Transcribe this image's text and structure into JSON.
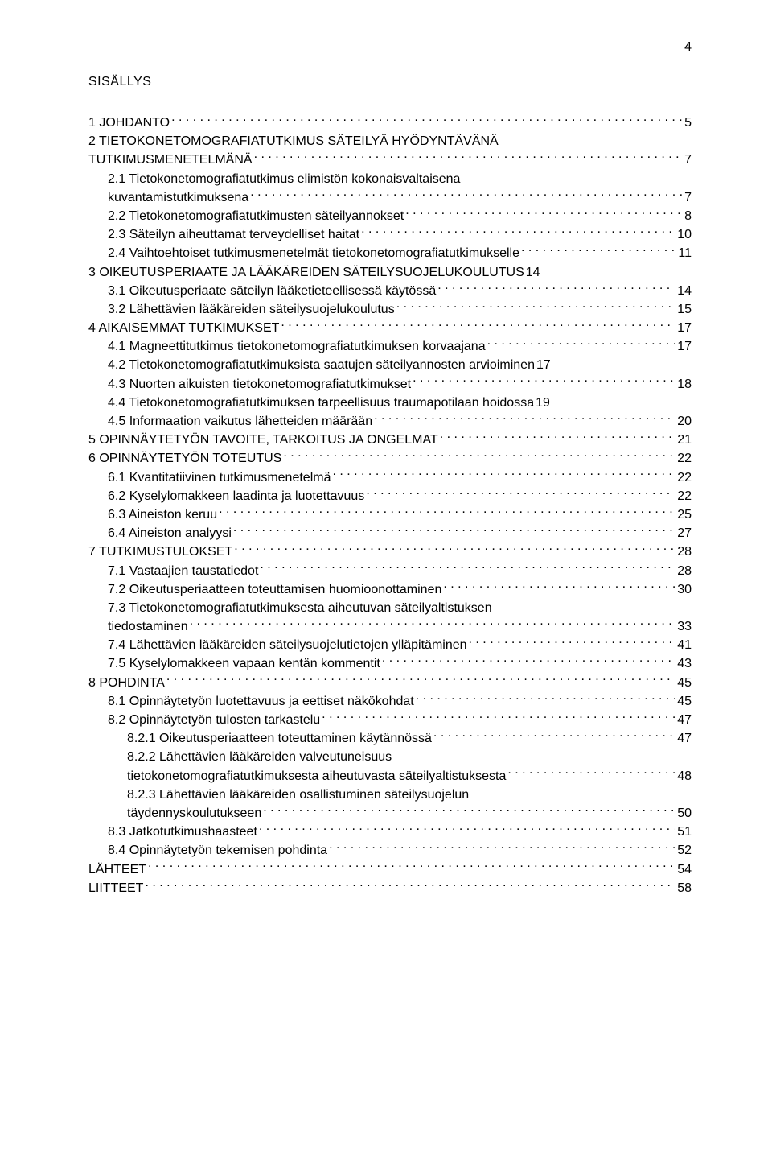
{
  "page_number": "4",
  "heading": "SISÄLLYS",
  "text_color": "#000000",
  "background_color": "#ffffff",
  "font_family": "Arial",
  "body_font_size_pt": 12,
  "toc": [
    {
      "level": 0,
      "label": "1 JOHDANTO",
      "page": "5"
    },
    {
      "level": 0,
      "multi": true,
      "line1": "2 TIETOKONETOMOGRAFIATUTKIMUS SÄTEILYÄ HYÖDYNTÄVÄNÄ",
      "line2": "TUTKIMUSMENETELMÄNÄ",
      "page": "7"
    },
    {
      "level": 1,
      "multi": true,
      "line1": "2.1 Tietokonetomografiatutkimus elimistön kokonaisvaltaisena",
      "line2": "kuvantamistutkimuksena",
      "page": "7"
    },
    {
      "level": 1,
      "label": "2.2 Tietokonetomografiatutkimusten säteilyannokset",
      "page": "8"
    },
    {
      "level": 1,
      "label": "2.3 Säteilyn aiheuttamat terveydelliset haitat",
      "page": "10"
    },
    {
      "level": 1,
      "label": "2.4 Vaihtoehtoiset tutkimusmenetelmät tietokonetomografiatutkimukselle",
      "page": "11"
    },
    {
      "level": 0,
      "label": "3 OIKEUTUSPERIAATE JA LÄÄKÄREIDEN SÄTEILYSUOJELUKOULUTUS",
      "page": "14",
      "tight": true
    },
    {
      "level": 1,
      "label": "3.1 Oikeutusperiaate säteilyn lääketieteellisessä käytössä",
      "page": "14"
    },
    {
      "level": 1,
      "label": "3.2 Lähettävien lääkäreiden säteilysuojelukoulutus",
      "page": "15"
    },
    {
      "level": 0,
      "label": "4 AIKAISEMMAT TUTKIMUKSET",
      "page": "17"
    },
    {
      "level": 1,
      "label": "4.1 Magneettitutkimus tietokonetomografiatutkimuksen korvaajana",
      "page": "17"
    },
    {
      "level": 1,
      "label": "4.2 Tietokonetomografiatutkimuksista saatujen säteilyannosten arvioiminen",
      "page": "17",
      "tight": true
    },
    {
      "level": 1,
      "label": "4.3 Nuorten aikuisten tietokonetomografiatutkimukset",
      "page": "18"
    },
    {
      "level": 1,
      "label": "4.4 Tietokonetomografiatutkimuksen tarpeellisuus traumapotilaan hoidossa",
      "page": "19",
      "tight": true
    },
    {
      "level": 1,
      "label": "4.5 Informaation vaikutus lähetteiden määrään",
      "page": "20"
    },
    {
      "level": 0,
      "label": "5 OPINNÄYTETYÖN TAVOITE, TARKOITUS JA ONGELMAT",
      "page": "21"
    },
    {
      "level": 0,
      "label": "6 OPINNÄYTETYÖN TOTEUTUS",
      "page": "22"
    },
    {
      "level": 1,
      "label": "6.1 Kvantitatiivinen tutkimusmenetelmä",
      "page": "22"
    },
    {
      "level": 1,
      "label": "6.2 Kyselylomakkeen laadinta ja luotettavuus",
      "page": "22"
    },
    {
      "level": 1,
      "label": "6.3 Aineiston keruu",
      "page": "25"
    },
    {
      "level": 1,
      "label": "6.4 Aineiston analyysi",
      "page": "27"
    },
    {
      "level": 0,
      "label": "7 TUTKIMUSTULOKSET",
      "page": "28"
    },
    {
      "level": 1,
      "label": "7.1 Vastaajien taustatiedot",
      "page": "28"
    },
    {
      "level": 1,
      "label": "7.2 Oikeutusperiaatteen toteuttamisen huomioonottaminen",
      "page": "30"
    },
    {
      "level": 1,
      "multi": true,
      "line1": "7.3 Tietokonetomografiatutkimuksesta aiheutuvan säteilyaltistuksen",
      "line2": "tiedostaminen",
      "page": "33"
    },
    {
      "level": 1,
      "label": "7.4 Lähettävien lääkäreiden säteilysuojelutietojen ylläpitäminen",
      "page": "41"
    },
    {
      "level": 1,
      "label": "7.5 Kyselylomakkeen vapaan kentän kommentit",
      "page": "43"
    },
    {
      "level": 0,
      "label": "8 POHDINTA",
      "page": "45"
    },
    {
      "level": 1,
      "label": "8.1 Opinnäytetyön luotettavuus ja eettiset näkökohdat",
      "page": "45"
    },
    {
      "level": 1,
      "label": "8.2 Opinnäytetyön tulosten tarkastelu",
      "page": "47"
    },
    {
      "level": 2,
      "label": "8.2.1 Oikeutusperiaatteen toteuttaminen käytännössä",
      "page": "47"
    },
    {
      "level": 2,
      "multi": true,
      "line1": "8.2.2 Lähettävien lääkäreiden valveutuneisuus",
      "line2": "tietokonetomografiatutkimuksesta aiheutuvasta säteilyaltistuksesta",
      "page": "48"
    },
    {
      "level": 2,
      "multi": true,
      "line1": "8.2.3 Lähettävien lääkäreiden osallistuminen säteilysuojelun",
      "line2": "täydennyskoulutukseen",
      "page": "50"
    },
    {
      "level": 1,
      "label": "8.3 Jatkotutkimushaasteet",
      "page": "51"
    },
    {
      "level": 1,
      "label": "8.4 Opinnäytetyön tekemisen pohdinta",
      "page": "52"
    },
    {
      "level": 0,
      "label": "LÄHTEET",
      "page": "54"
    },
    {
      "level": 0,
      "label": "LIITTEET",
      "page": "58"
    }
  ]
}
